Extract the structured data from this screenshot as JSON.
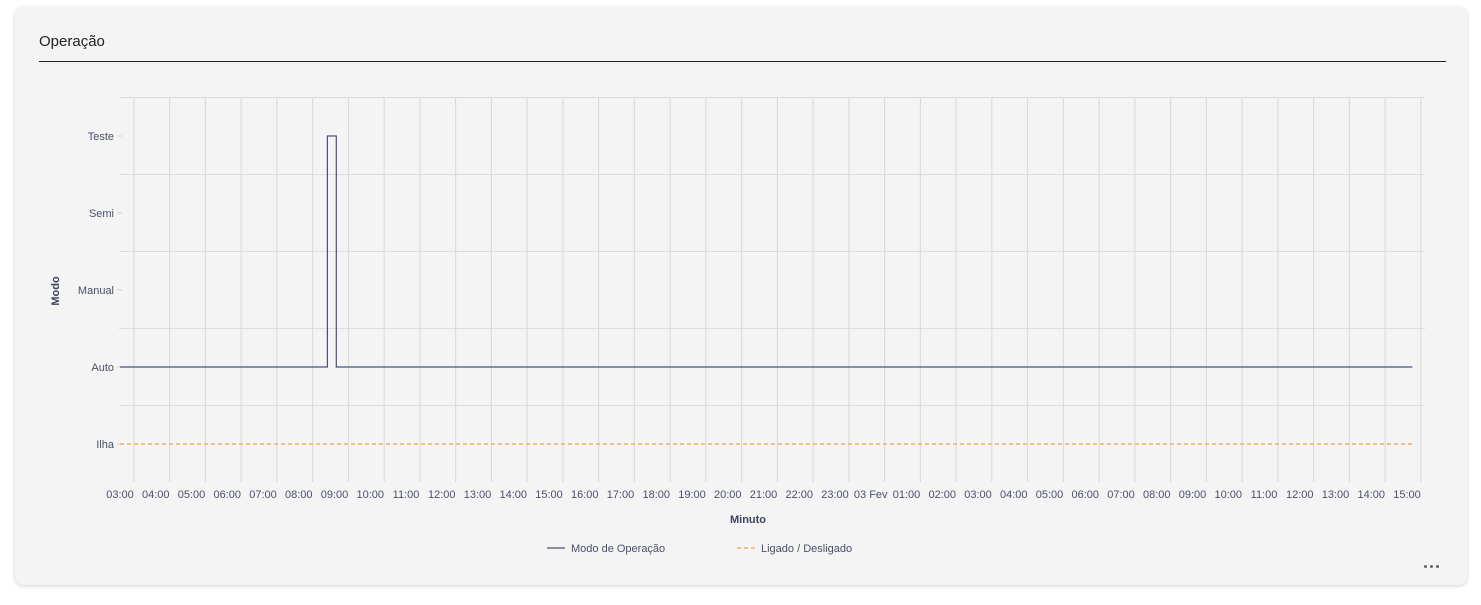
{
  "card": {
    "title": "Operação"
  },
  "chart_data": {
    "type": "line",
    "xlabel": "Minuto",
    "ylabel": "Modo",
    "x_ticks": [
      "03:00",
      "04:00",
      "05:00",
      "06:00",
      "07:00",
      "08:00",
      "09:00",
      "10:00",
      "11:00",
      "12:00",
      "13:00",
      "14:00",
      "15:00",
      "16:00",
      "17:00",
      "18:00",
      "19:00",
      "20:00",
      "21:00",
      "22:00",
      "23:00",
      "03 Fev",
      "01:00",
      "02:00",
      "03:00",
      "04:00",
      "05:00",
      "06:00",
      "07:00",
      "08:00",
      "09:00",
      "10:00",
      "11:00",
      "12:00",
      "13:00",
      "14:00",
      "15:00"
    ],
    "y_categories": [
      "Ilha",
      "Auto",
      "Manual",
      "Semi",
      "Teste"
    ],
    "grid": true,
    "legend_position": "bottom-center",
    "series": [
      {
        "name": "Modo de Operação",
        "color": "#4a5078",
        "style": "solid",
        "step": true,
        "points": [
          {
            "x": 0,
            "y": "Auto"
          },
          {
            "x": 5.8,
            "y": "Auto"
          },
          {
            "x": 5.8,
            "y": "Teste"
          },
          {
            "x": 6.05,
            "y": "Teste"
          },
          {
            "x": 6.05,
            "y": "Auto"
          },
          {
            "x": 36.15,
            "y": "Auto"
          }
        ]
      },
      {
        "name": "Ligado / Desligado",
        "color": "#f5a04a",
        "style": "dashed",
        "step": true,
        "points": [
          {
            "x": 0,
            "y": "Ilha"
          },
          {
            "x": 36.15,
            "y": "Ilha"
          }
        ]
      }
    ]
  },
  "toolbar": {
    "more_icon": "more-horizontal-icon"
  }
}
